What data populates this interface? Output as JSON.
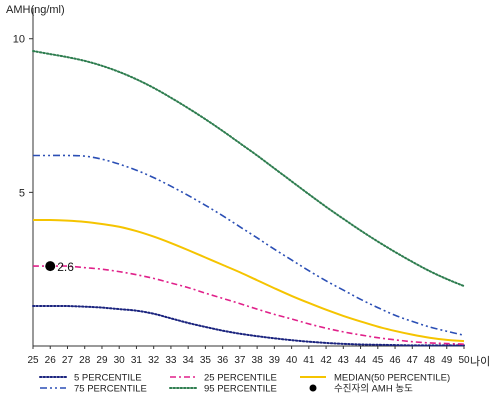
{
  "chart_data": {
    "type": "line",
    "title": "",
    "xlabel": "나이",
    "ylabel": "AMH(ng/ml)",
    "x": [
      25,
      26,
      27,
      28,
      29,
      30,
      31,
      32,
      33,
      34,
      35,
      36,
      37,
      38,
      39,
      40,
      41,
      42,
      43,
      44,
      45,
      46,
      47,
      48,
      49,
      50
    ],
    "xlim": [
      25,
      50
    ],
    "ylim": [
      0,
      11
    ],
    "yticks": [
      5,
      10
    ],
    "grid": false,
    "legend_position": "bottom",
    "series": [
      {
        "name": "5 PERCENTILE",
        "color": "#1a237e",
        "style": "dotted",
        "values": [
          1.3,
          1.3,
          1.3,
          1.28,
          1.25,
          1.2,
          1.15,
          1.05,
          0.9,
          0.75,
          0.62,
          0.5,
          0.4,
          0.32,
          0.25,
          0.19,
          0.14,
          0.1,
          0.07,
          0.05,
          0.04,
          0.03,
          0.02,
          0.02,
          0.02,
          0.02
        ]
      },
      {
        "name": "25 PERCENTILE",
        "color": "#e0218a",
        "style": "dashdot",
        "values": [
          2.6,
          2.6,
          2.6,
          2.55,
          2.5,
          2.42,
          2.32,
          2.2,
          2.05,
          1.9,
          1.72,
          1.55,
          1.38,
          1.2,
          1.03,
          0.88,
          0.72,
          0.58,
          0.46,
          0.36,
          0.27,
          0.2,
          0.14,
          0.1,
          0.08,
          0.06
        ]
      },
      {
        "name": "MEDIAN(50 PERCENTILE)",
        "color": "#f5c400",
        "style": "solid",
        "values": [
          4.1,
          4.1,
          4.08,
          4.04,
          3.97,
          3.88,
          3.74,
          3.56,
          3.35,
          3.12,
          2.88,
          2.64,
          2.4,
          2.14,
          1.88,
          1.63,
          1.4,
          1.18,
          0.98,
          0.8,
          0.63,
          0.49,
          0.37,
          0.27,
          0.2,
          0.16
        ]
      },
      {
        "name": "75 PERCENTILE",
        "color": "#2b4fb5",
        "style": "dashdotdot",
        "values": [
          6.2,
          6.2,
          6.2,
          6.18,
          6.08,
          5.92,
          5.72,
          5.48,
          5.2,
          4.9,
          4.58,
          4.24,
          3.88,
          3.52,
          3.15,
          2.8,
          2.45,
          2.12,
          1.82,
          1.52,
          1.25,
          1.0,
          0.8,
          0.62,
          0.48,
          0.35
        ]
      },
      {
        "name": "95 PERCENTILE",
        "color": "#2e7d4f",
        "style": "dotted",
        "values": [
          9.6,
          9.5,
          9.4,
          9.28,
          9.12,
          8.92,
          8.68,
          8.4,
          8.08,
          7.74,
          7.38,
          7.0,
          6.6,
          6.2,
          5.78,
          5.36,
          4.94,
          4.53,
          4.14,
          3.76,
          3.4,
          3.06,
          2.74,
          2.44,
          2.18,
          1.95
        ]
      }
    ],
    "points": [
      {
        "name": "수진자의 AMH 농도",
        "x": 26,
        "y": 2.6,
        "label": "2.6",
        "color": "#000000"
      }
    ]
  }
}
